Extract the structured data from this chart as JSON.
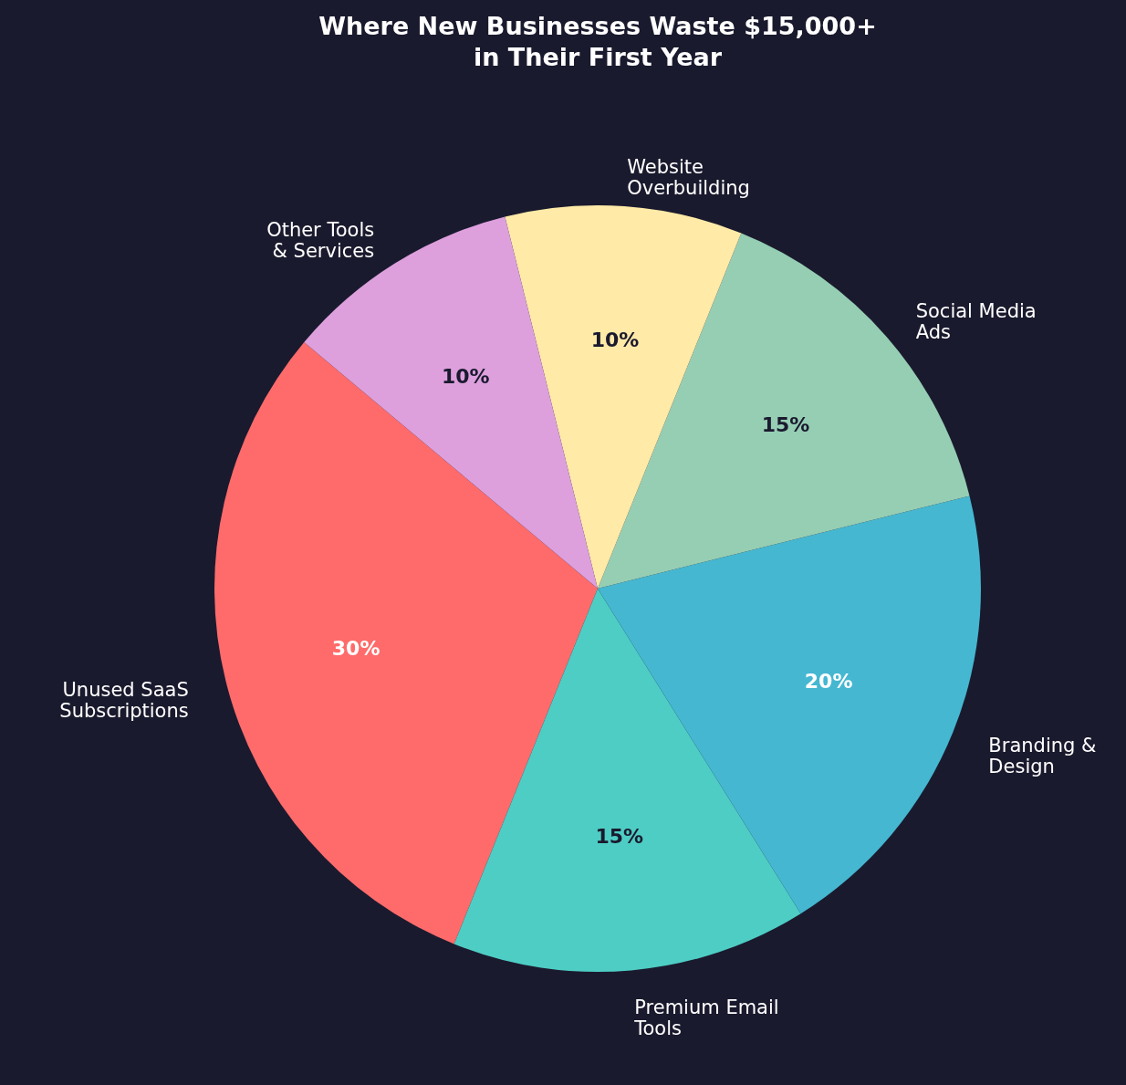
{
  "chart_data": {
    "type": "pie",
    "title": "Where New Businesses Waste $15,000+\nin Their First Year",
    "categories": [
      "Unused SaaS\nSubscriptions",
      "Premium Email\nTools",
      "Branding &\nDesign",
      "Social Media\nAds",
      "Website\nOverbuilding",
      "Other Tools\n& Services"
    ],
    "values": [
      30,
      15,
      20,
      15,
      10,
      10
    ],
    "colors": [
      "#ff6b6b",
      "#4ecdc4",
      "#45b7d1",
      "#96ceb4",
      "#ffeaa7",
      "#dda0dd"
    ],
    "value_labels": [
      "30%",
      "15%",
      "20%",
      "15%",
      "10%",
      "10%"
    ],
    "legend": false
  }
}
